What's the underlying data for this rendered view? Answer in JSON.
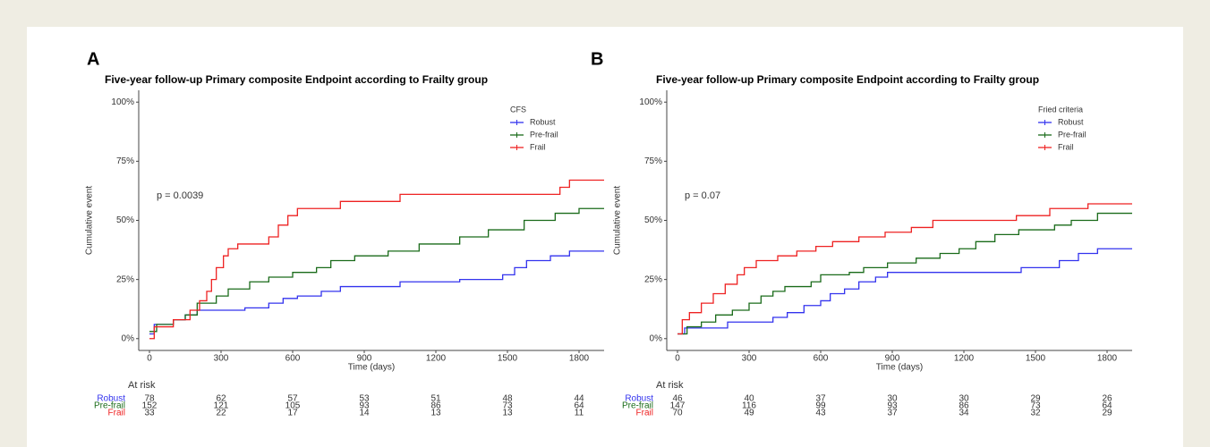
{
  "chart_data": [
    {
      "type": "step",
      "panel_label": "A",
      "title": "Five-year follow-up Primary composite Endpoint according to Frailty group",
      "x_label": "Time (days)",
      "y_label": "Cumulative event",
      "annotation": "p = 0.0039",
      "legend_title": "CFS",
      "legend": "top-right",
      "xlim": [
        -45,
        1905
      ],
      "xticks": [
        0,
        300,
        600,
        900,
        1200,
        1500,
        1800
      ],
      "ylim": [
        -5,
        105
      ],
      "yticks": [
        {
          "value": 0,
          "label": "0%"
        },
        {
          "value": 25,
          "label": "25%"
        },
        {
          "value": 50,
          "label": "50%"
        },
        {
          "value": 75,
          "label": "75%"
        },
        {
          "value": 100,
          "label": "100%"
        }
      ],
      "series": [
        {
          "name": "Robust",
          "color": "#3333ee",
          "x": [
            0,
            20,
            100,
            150,
            200,
            380,
            400,
            500,
            560,
            620,
            720,
            800,
            1050,
            1300,
            1480,
            1530,
            1580,
            1680,
            1760,
            1905
          ],
          "values": [
            2,
            6,
            8,
            10,
            12,
            12,
            13,
            15,
            17,
            18,
            20,
            22,
            24,
            25,
            27,
            30,
            33,
            35,
            37,
            37
          ]
        },
        {
          "name": "Pre-frail",
          "color": "#1a6b1a",
          "x": [
            0,
            30,
            100,
            150,
            200,
            280,
            330,
            420,
            500,
            600,
            700,
            760,
            860,
            1000,
            1130,
            1300,
            1420,
            1570,
            1700,
            1800,
            1905
          ],
          "values": [
            3,
            6,
            8,
            10,
            15,
            18,
            21,
            24,
            26,
            28,
            30,
            33,
            35,
            37,
            40,
            43,
            46,
            50,
            53,
            55,
            55
          ]
        },
        {
          "name": "Frail",
          "color": "#ee2222",
          "x": [
            0,
            20,
            100,
            170,
            210,
            240,
            260,
            280,
            310,
            330,
            370,
            500,
            540,
            580,
            620,
            800,
            1050,
            1720,
            1760,
            1905
          ],
          "values": [
            0,
            5,
            8,
            12,
            16,
            20,
            25,
            30,
            35,
            38,
            40,
            43,
            48,
            52,
            55,
            58,
            61,
            64,
            67,
            67
          ]
        }
      ],
      "risk_table": {
        "title": "At risk",
        "rows": [
          {
            "name": "Robust",
            "color": "#3333ee",
            "values": [
              78,
              62,
              57,
              53,
              51,
              48,
              44
            ]
          },
          {
            "name": "Pre-frail",
            "color": "#1a6b1a",
            "values": [
              152,
              121,
              105,
              93,
              86,
              73,
              64
            ]
          },
          {
            "name": "Frail",
            "color": "#ee2222",
            "values": [
              33,
              22,
              17,
              14,
              13,
              13,
              11
            ]
          }
        ]
      }
    },
    {
      "type": "step",
      "panel_label": "B",
      "title": "Five-year follow-up Primary composite Endpoint according to Frailty group",
      "x_label": "Time (days)",
      "y_label": "Cumulative event",
      "annotation": "p = 0.07",
      "legend_title": "Fried criteria",
      "legend": "top-right",
      "xlim": [
        -45,
        1905
      ],
      "xticks": [
        0,
        300,
        600,
        900,
        1200,
        1500,
        1800
      ],
      "ylim": [
        -5,
        105
      ],
      "yticks": [
        {
          "value": 0,
          "label": "0%"
        },
        {
          "value": 25,
          "label": "25%"
        },
        {
          "value": 50,
          "label": "50%"
        },
        {
          "value": 75,
          "label": "75%"
        },
        {
          "value": 100,
          "label": "100%"
        }
      ],
      "series": [
        {
          "name": "Robust",
          "color": "#3333ee",
          "x": [
            0,
            30,
            210,
            400,
            460,
            530,
            600,
            640,
            700,
            760,
            830,
            880,
            1440,
            1600,
            1680,
            1760,
            1905
          ],
          "values": [
            2,
            4.5,
            7,
            9,
            11,
            14,
            16,
            19,
            21,
            24,
            26,
            28,
            30,
            33,
            36,
            38,
            38
          ]
        },
        {
          "name": "Pre-frail",
          "color": "#1a6b1a",
          "x": [
            0,
            40,
            100,
            160,
            230,
            300,
            350,
            400,
            450,
            560,
            600,
            720,
            780,
            880,
            1000,
            1100,
            1180,
            1250,
            1330,
            1430,
            1580,
            1650,
            1760,
            1905
          ],
          "values": [
            2,
            5,
            7,
            10,
            12,
            15,
            18,
            20,
            22,
            24,
            27,
            28,
            30,
            32,
            34,
            36,
            38,
            41,
            44,
            46,
            48,
            50,
            53,
            53
          ]
        },
        {
          "name": "Frail",
          "color": "#ee2222",
          "x": [
            0,
            20,
            50,
            100,
            150,
            200,
            250,
            280,
            330,
            420,
            500,
            580,
            650,
            760,
            870,
            980,
            1070,
            1420,
            1560,
            1720,
            1905
          ],
          "values": [
            2,
            8,
            11,
            15,
            19,
            23,
            27,
            30,
            33,
            35,
            37,
            39,
            41,
            43,
            45,
            47,
            50,
            52,
            55,
            57,
            57
          ]
        }
      ],
      "risk_table": {
        "title": "At risk",
        "rows": [
          {
            "name": "Robust",
            "color": "#3333ee",
            "values": [
              46,
              40,
              37,
              30,
              30,
              29,
              26
            ]
          },
          {
            "name": "Pre-frail",
            "color": "#1a6b1a",
            "values": [
              147,
              116,
              99,
              93,
              86,
              73,
              64
            ]
          },
          {
            "name": "Frail",
            "color": "#ee2222",
            "values": [
              70,
              49,
              43,
              37,
              34,
              32,
              29
            ]
          }
        ]
      }
    }
  ]
}
